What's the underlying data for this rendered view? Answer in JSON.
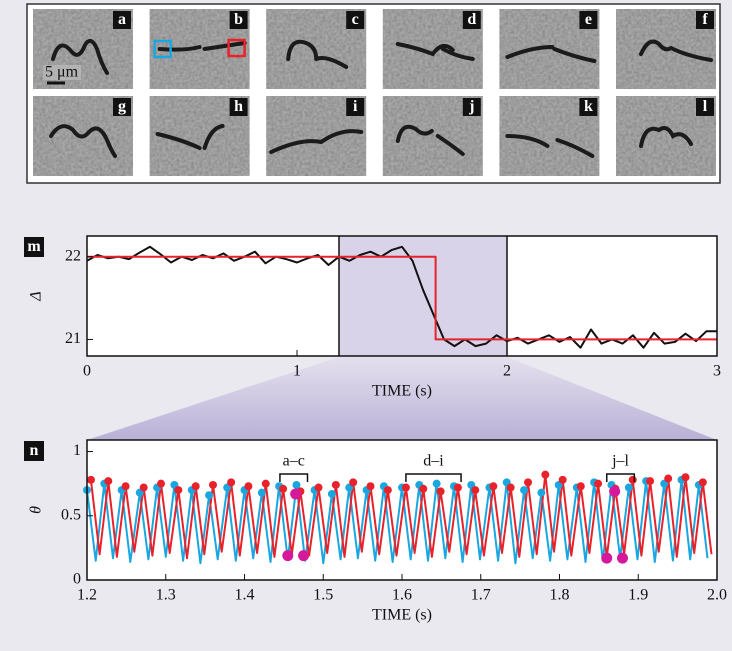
{
  "images": {
    "labels": [
      "a",
      "b",
      "c",
      "d",
      "e",
      "f",
      "g",
      "h",
      "i",
      "j",
      "k",
      "l"
    ],
    "scale_bar": "5 μm"
  },
  "chart_data": [
    {
      "type": "line",
      "panel_label": "m",
      "x_label": "TIME (s)",
      "y_label": "Δ",
      "xlim": [
        0,
        3
      ],
      "ylim": [
        20.8,
        22.25
      ],
      "xticks": [
        0,
        1,
        2,
        3
      ],
      "yticks": [
        21,
        22
      ],
      "highlight": [
        1.2,
        2.0
      ],
      "highlight_color": "#d8d3e8",
      "series": [
        {
          "color": "#111111",
          "x": [
            0,
            0.05,
            0.1,
            0.15,
            0.2,
            0.25,
            0.3,
            0.35,
            0.4,
            0.45,
            0.5,
            0.55,
            0.6,
            0.65,
            0.7,
            0.75,
            0.8,
            0.85,
            0.9,
            0.95,
            1.0,
            1.05,
            1.1,
            1.15,
            1.2,
            1.25,
            1.3,
            1.35,
            1.4,
            1.45,
            1.5,
            1.55,
            1.6,
            1.65,
            1.7,
            1.75,
            1.8,
            1.85,
            1.9,
            1.95,
            2.0,
            2.05,
            2.1,
            2.15,
            2.2,
            2.25,
            2.3,
            2.35,
            2.4,
            2.45,
            2.5,
            2.55,
            2.6,
            2.65,
            2.7,
            2.75,
            2.8,
            2.85,
            2.9,
            2.95,
            3.0
          ],
          "values": [
            21.95,
            22.02,
            21.98,
            22.0,
            21.97,
            22.05,
            22.12,
            22.03,
            21.93,
            22.0,
            21.96,
            22.02,
            21.98,
            22.04,
            21.95,
            22.0,
            22.06,
            21.92,
            22.0,
            21.97,
            21.93,
            21.98,
            22.02,
            21.9,
            22.0,
            21.95,
            22.02,
            22.06,
            22.0,
            22.08,
            22.12,
            21.95,
            21.6,
            21.3,
            21.0,
            20.92,
            21.0,
            20.92,
            20.95,
            21.05,
            20.98,
            21.02,
            20.95,
            21.0,
            21.05,
            20.97,
            21.03,
            20.9,
            21.12,
            20.95,
            21.0,
            20.95,
            21.05,
            20.9,
            21.08,
            20.95,
            20.97,
            21.07,
            20.98,
            21.1,
            21.1
          ]
        },
        {
          "color": "#e8222a",
          "x": [
            0,
            1.66,
            1.66,
            3
          ],
          "values": [
            22,
            22,
            21,
            21
          ]
        }
      ]
    },
    {
      "type": "line",
      "panel_label": "n",
      "x_label": "TIME (s)",
      "y_label": "θ",
      "xlim": [
        1.2,
        2.0
      ],
      "ylim": [
        0,
        1.09
      ],
      "xticks": [
        1.2,
        1.3,
        1.4,
        1.5,
        1.6,
        1.7,
        1.8,
        1.9,
        {
          "value": 2.0,
          "label": "2.0"
        }
      ],
      "yticks": [
        0,
        0.5,
        1
      ],
      "series": [
        {
          "color": "#1aa7e0",
          "x": [
            1.2,
            1.211,
            1.222,
            1.233,
            1.244,
            1.255,
            1.267,
            1.278,
            1.289,
            1.3,
            1.311,
            1.322,
            1.333,
            1.344,
            1.355,
            1.366,
            1.378,
            1.389,
            1.4,
            1.411,
            1.422,
            1.433,
            1.444,
            1.455,
            1.466,
            1.477,
            1.489,
            1.5,
            1.511,
            1.522,
            1.533,
            1.544,
            1.555,
            1.566,
            1.577,
            1.588,
            1.6,
            1.611,
            1.622,
            1.633,
            1.644,
            1.655,
            1.666,
            1.677,
            1.688,
            1.699,
            1.711,
            1.722,
            1.733,
            1.744,
            1.755,
            1.766,
            1.777,
            1.788,
            1.799,
            1.81,
            1.822,
            1.833,
            1.844,
            1.855,
            1.866,
            1.877,
            1.888,
            1.899,
            1.91,
            1.921,
            1.933,
            1.944,
            1.955,
            1.966,
            1.977,
            1.988
          ],
          "values": [
            0.7,
            0.15,
            0.75,
            0.17,
            0.7,
            0.14,
            0.68,
            0.16,
            0.72,
            0.18,
            0.74,
            0.15,
            0.7,
            0.13,
            0.66,
            0.16,
            0.72,
            0.15,
            0.7,
            0.17,
            0.68,
            0.14,
            0.73,
            0.16,
            0.74,
            0.15,
            0.7,
            0.13,
            0.67,
            0.16,
            0.72,
            0.17,
            0.7,
            0.15,
            0.73,
            0.14,
            0.72,
            0.16,
            0.74,
            0.15,
            0.75,
            0.17,
            0.73,
            0.14,
            0.74,
            0.16,
            0.72,
            0.15,
            0.76,
            0.13,
            0.7,
            0.17,
            0.68,
            0.15,
            0.74,
            0.16,
            0.72,
            0.14,
            0.76,
            0.15,
            0.74,
            0.17,
            0.72,
            0.16,
            0.77,
            0.14,
            0.75,
            0.15,
            0.78,
            0.16,
            0.74,
            0.17
          ]
        },
        {
          "color": "#e8222a",
          "x": [
            1.205,
            1.216,
            1.227,
            1.238,
            1.249,
            1.26,
            1.272,
            1.283,
            1.294,
            1.305,
            1.316,
            1.327,
            1.338,
            1.349,
            1.36,
            1.371,
            1.383,
            1.394,
            1.405,
            1.416,
            1.427,
            1.438,
            1.449,
            1.46,
            1.471,
            1.482,
            1.494,
            1.505,
            1.516,
            1.527,
            1.538,
            1.549,
            1.56,
            1.571,
            1.582,
            1.593,
            1.605,
            1.616,
            1.627,
            1.638,
            1.649,
            1.66,
            1.671,
            1.682,
            1.693,
            1.704,
            1.716,
            1.727,
            1.738,
            1.749,
            1.76,
            1.771,
            1.782,
            1.793,
            1.804,
            1.815,
            1.827,
            1.838,
            1.849,
            1.86,
            1.871,
            1.882,
            1.893,
            1.904,
            1.915,
            1.926,
            1.938,
            1.949,
            1.96,
            1.971,
            1.982,
            1.993
          ],
          "values": [
            0.78,
            0.2,
            0.77,
            0.18,
            0.73,
            0.22,
            0.72,
            0.19,
            0.75,
            0.21,
            0.7,
            0.17,
            0.73,
            0.2,
            0.74,
            0.22,
            0.76,
            0.19,
            0.73,
            0.21,
            0.75,
            0.18,
            0.71,
            0.2,
            0.69,
            0.19,
            0.72,
            0.21,
            0.74,
            0.18,
            0.76,
            0.22,
            0.73,
            0.2,
            0.7,
            0.19,
            0.72,
            0.21,
            0.71,
            0.18,
            0.69,
            0.22,
            0.72,
            0.2,
            0.7,
            0.19,
            0.73,
            0.21,
            0.72,
            0.18,
            0.76,
            0.2,
            0.82,
            0.22,
            0.78,
            0.19,
            0.73,
            0.21,
            0.75,
            0.18,
            0.71,
            0.2,
            0.78,
            0.19,
            0.77,
            0.22,
            0.79,
            0.18,
            0.8,
            0.21,
            0.76,
            0.2
          ]
        }
      ],
      "points": {
        "color": "#d6189a",
        "x": [
          1.455,
          1.465,
          1.475,
          1.86,
          1.87,
          1.88
        ],
        "values": [
          0.19,
          0.67,
          0.19,
          0.17,
          0.69,
          0.17
        ]
      },
      "annotations": [
        {
          "text": "a–c",
          "x": [
            1.445,
            1.48
          ]
        },
        {
          "text": "d–i",
          "x": [
            1.605,
            1.675
          ]
        },
        {
          "text": "j–l",
          "x": [
            1.86,
            1.895
          ]
        }
      ]
    }
  ]
}
